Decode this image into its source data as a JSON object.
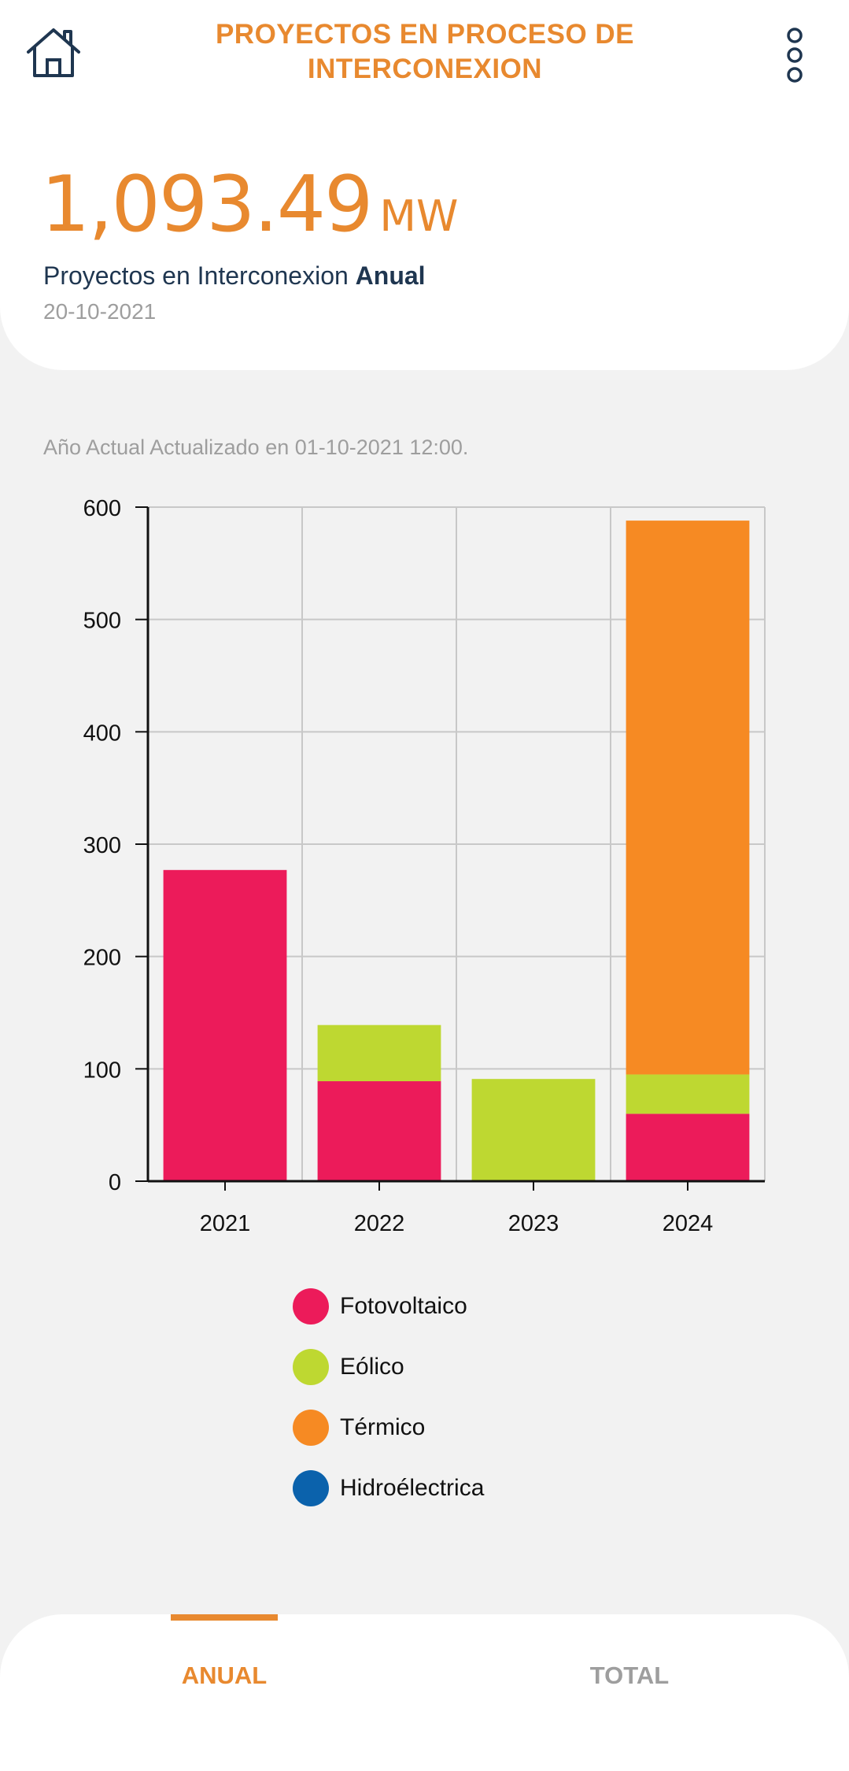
{
  "header": {
    "title": "PROYECTOS EN PROCESO DE INTERCONEXION",
    "home_icon": "home-icon",
    "menu_icon": "more-vert-icon"
  },
  "summary": {
    "value": "1,093.49",
    "unit": "MW",
    "label": "Proyectos en Interconexion",
    "label_bold": "Anual",
    "date": "20-10-2021"
  },
  "updated_text": "Año Actual Actualizado en 01-10-2021 12:00.",
  "chart_data": {
    "type": "bar",
    "stacked": true,
    "categories": [
      "2021",
      "2022",
      "2023",
      "2024"
    ],
    "series": [
      {
        "name": "Fotovoltaico",
        "color": "#ec1b5a",
        "values": [
          277,
          89,
          0,
          60
        ]
      },
      {
        "name": "Eólico",
        "color": "#bed831",
        "values": [
          0,
          50,
          91,
          35
        ]
      },
      {
        "name": "Térmico",
        "color": "#f68a23",
        "values": [
          0,
          0,
          0,
          493
        ]
      },
      {
        "name": "Hidroélectrica",
        "color": "#0b62ac",
        "values": [
          0,
          0,
          0,
          0
        ]
      }
    ],
    "ylim": [
      0,
      600
    ],
    "yticks": [
      0,
      100,
      200,
      300,
      400,
      500,
      600
    ],
    "grid": true,
    "legend": "bottom"
  },
  "tabs": [
    {
      "label": "ANUAL",
      "active": true
    },
    {
      "label": "TOTAL",
      "active": false
    }
  ]
}
